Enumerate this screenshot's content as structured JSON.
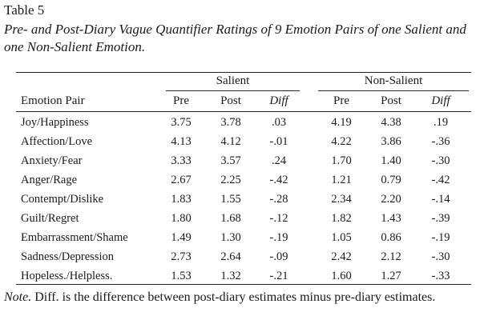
{
  "table": {
    "number": "Table 5",
    "title": "Pre- and Post-Diary Vague Quantifier Ratings of 9 Emotion Pairs of one Salient and one Non-Salient Emotion.",
    "group_headers": {
      "salient": "Salient",
      "non_salient": "Non-Salient"
    },
    "column_headers": [
      "Emotion Pair",
      "Pre",
      "Post",
      "Diff",
      "Pre",
      "Post",
      "Diff"
    ],
    "rows": [
      [
        "Joy/Happiness",
        "3.75",
        "3.78",
        ".03",
        "4.19",
        "4.38",
        ".19"
      ],
      [
        "Affection/Love",
        "4.13",
        "4.12",
        "-.01",
        "4.22",
        "3.86",
        "-.36"
      ],
      [
        "Anxiety/Fear",
        "3.33",
        "3.57",
        ".24",
        "1.70",
        "1.40",
        "-.30"
      ],
      [
        "Anger/Rage",
        "2.67",
        "2.25",
        "-.42",
        "1.21",
        "0.79",
        "-.42"
      ],
      [
        "Contempt/Dislike",
        "1.83",
        "1.55",
        "-.28",
        "2.34",
        "2.20",
        "-.14"
      ],
      [
        "Guilt/Regret",
        "1.80",
        "1.68",
        "-.12",
        "1.82",
        "1.43",
        "-.39"
      ],
      [
        "Embarrassment/Shame",
        "1.49",
        "1.30",
        "-.19",
        "1.05",
        "0.86",
        "-.19"
      ],
      [
        "Sadness/Depression",
        "2.73",
        "2.64",
        "-.09",
        "2.42",
        "2.12",
        "-.30"
      ],
      [
        "Hopeless./Helpless.",
        "1.53",
        "1.32",
        "-.21",
        "1.60",
        "1.27",
        "-.33"
      ]
    ],
    "note": {
      "label": "Note.",
      "text": " Diff. is the difference between post-diary estimates minus pre-diary estimates."
    }
  }
}
